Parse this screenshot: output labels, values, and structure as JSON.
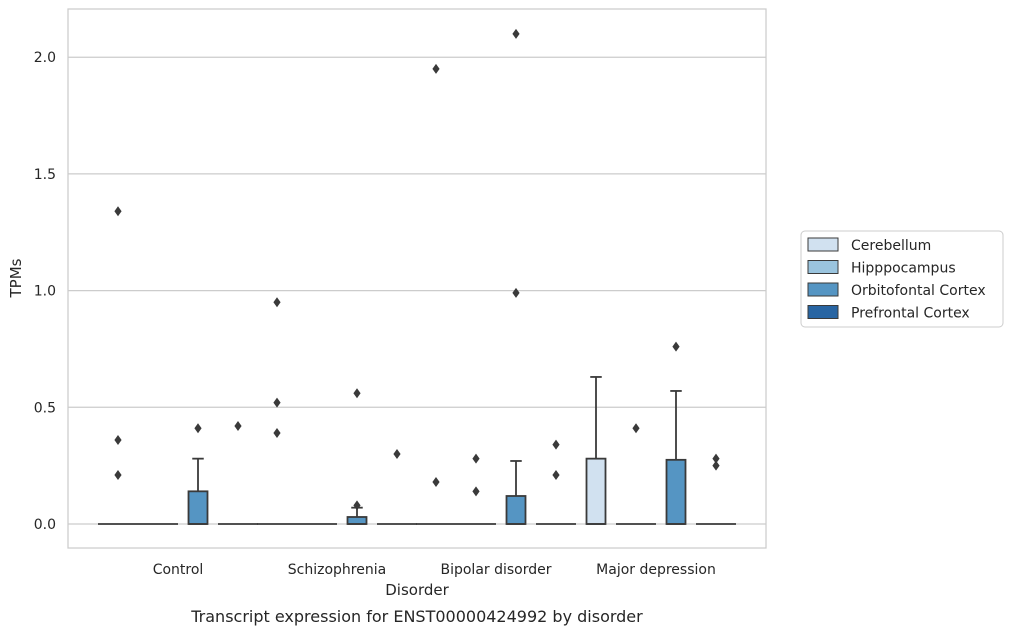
{
  "chart_data": {
    "type": "box",
    "caption": "Transcript expression for ENST00000424992 by disorder",
    "xlabel": "Disorder",
    "ylabel": "TPMs",
    "ylim": [
      -0.1,
      2.22
    ],
    "yticks": [
      "0.0",
      "0.5",
      "1.0",
      "1.5",
      "2.0"
    ],
    "grid": "horizontal",
    "legend_position": "right",
    "categories": [
      "Control",
      "Schizophrenia",
      "Bipolar disorder",
      "Major depression"
    ],
    "series": [
      {
        "name": "Cerebellum",
        "color": "#d1e1f0"
      },
      {
        "name": "Hipppocampus",
        "color": "#9ac4de"
      },
      {
        "name": "Orbitofontal Cortex",
        "color": "#5595c3"
      },
      {
        "name": "Prefrontal Cortex",
        "color": "#2865a3"
      }
    ],
    "boxes": [
      {
        "category": "Control",
        "series": "Cerebellum",
        "q1": 0,
        "median": 0,
        "q3": 0,
        "whisker_low": 0,
        "whisker_high": 0,
        "outliers": [
          0.21,
          0.36,
          1.34
        ]
      },
      {
        "category": "Control",
        "series": "Hipppocampus",
        "q1": 0,
        "median": 0,
        "q3": 0,
        "whisker_low": 0,
        "whisker_high": 0,
        "outliers": []
      },
      {
        "category": "Control",
        "series": "Orbitofontal Cortex",
        "q1": 0,
        "median": 0,
        "q3": 0.14,
        "whisker_low": 0,
        "whisker_high": 0.28,
        "outliers": [
          0.41
        ]
      },
      {
        "category": "Control",
        "series": "Prefrontal Cortex",
        "q1": 0,
        "median": 0,
        "q3": 0,
        "whisker_low": 0,
        "whisker_high": 0,
        "outliers": [
          0.42
        ]
      },
      {
        "category": "Schizophrenia",
        "series": "Cerebellum",
        "q1": 0,
        "median": 0,
        "q3": 0,
        "whisker_low": 0,
        "whisker_high": 0,
        "outliers": [
          0.39,
          0.52,
          0.95
        ]
      },
      {
        "category": "Schizophrenia",
        "series": "Hipppocampus",
        "q1": 0,
        "median": 0,
        "q3": 0,
        "whisker_low": 0,
        "whisker_high": 0,
        "outliers": []
      },
      {
        "category": "Schizophrenia",
        "series": "Orbitofontal Cortex",
        "q1": 0,
        "median": 0,
        "q3": 0.03,
        "whisker_low": 0,
        "whisker_high": 0.07,
        "outliers": [
          0.08,
          0.56
        ]
      },
      {
        "category": "Schizophrenia",
        "series": "Prefrontal Cortex",
        "q1": 0,
        "median": 0,
        "q3": 0,
        "whisker_low": 0,
        "whisker_high": 0,
        "outliers": [
          0.3
        ]
      },
      {
        "category": "Bipolar disorder",
        "series": "Cerebellum",
        "q1": 0,
        "median": 0,
        "q3": 0,
        "whisker_low": 0,
        "whisker_high": 0,
        "outliers": [
          0.18,
          1.95
        ]
      },
      {
        "category": "Bipolar disorder",
        "series": "Hipppocampus",
        "q1": 0,
        "median": 0,
        "q3": 0,
        "whisker_low": 0,
        "whisker_high": 0,
        "outliers": [
          0.14,
          0.28
        ]
      },
      {
        "category": "Bipolar disorder",
        "series": "Orbitofontal Cortex",
        "q1": 0,
        "median": 0,
        "q3": 0.12,
        "whisker_low": 0,
        "whisker_high": 0.27,
        "outliers": [
          0.99,
          2.1
        ]
      },
      {
        "category": "Bipolar disorder",
        "series": "Prefrontal Cortex",
        "q1": 0,
        "median": 0,
        "q3": 0,
        "whisker_low": 0,
        "whisker_high": 0,
        "outliers": [
          0.21,
          0.34
        ]
      },
      {
        "category": "Major depression",
        "series": "Cerebellum",
        "q1": 0,
        "median": 0,
        "q3": 0.28,
        "whisker_low": 0,
        "whisker_high": 0.63,
        "outliers": []
      },
      {
        "category": "Major depression",
        "series": "Hipppocampus",
        "q1": 0,
        "median": 0,
        "q3": 0,
        "whisker_low": 0,
        "whisker_high": 0,
        "outliers": [
          0.41
        ]
      },
      {
        "category": "Major depression",
        "series": "Orbitofontal Cortex",
        "q1": 0,
        "median": 0,
        "q3": 0.275,
        "whisker_low": 0,
        "whisker_high": 0.57,
        "outliers": [
          0.76
        ]
      },
      {
        "category": "Major depression",
        "series": "Prefrontal Cortex",
        "q1": 0,
        "median": 0,
        "q3": 0,
        "whisker_low": 0,
        "whisker_high": 0,
        "outliers": [
          0.25,
          0.28
        ]
      }
    ]
  }
}
